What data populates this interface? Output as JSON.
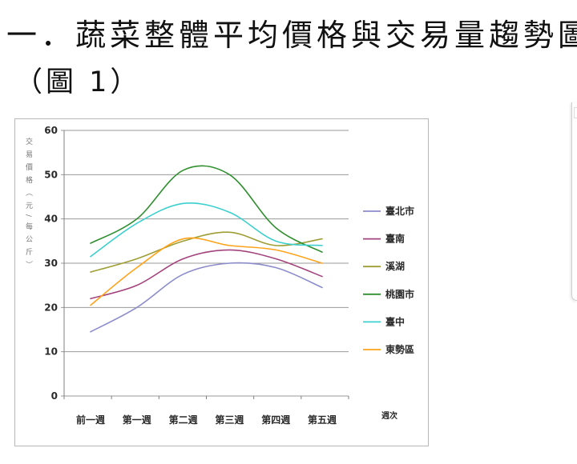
{
  "document": {
    "heading": "一．蔬菜整體平均價格與交易量趨勢圖",
    "figure_ref": "（圖 1）"
  },
  "chart_data": {
    "type": "line",
    "title": "",
    "xlabel": "週次",
    "ylabel": "交易價格（元/每公斤）",
    "categories": [
      "前一週",
      "第一週",
      "第二週",
      "第三週",
      "第四週",
      "第五週"
    ],
    "ylim": [
      0,
      60
    ],
    "yticks": [
      0,
      10,
      20,
      30,
      40,
      50,
      60
    ],
    "grid": true,
    "legend": "right",
    "series": [
      {
        "name": "臺北市",
        "color": "#8C8CCB",
        "values": [
          14.5,
          20,
          27.5,
          30,
          29,
          24.5
        ]
      },
      {
        "name": "臺南",
        "color": "#A3437D",
        "values": [
          22,
          25,
          31,
          33,
          31,
          27
        ]
      },
      {
        "name": "溪湖",
        "color": "#9E9E35",
        "values": [
          28,
          31,
          35,
          37,
          34,
          35.5
        ]
      },
      {
        "name": "桃園市",
        "color": "#2F8F2F",
        "values": [
          34.5,
          40,
          51,
          50,
          38,
          32.5
        ]
      },
      {
        "name": "臺中",
        "color": "#3CCFCF",
        "values": [
          31.5,
          39,
          43.5,
          41.5,
          35,
          34
        ]
      },
      {
        "name": "東勢區",
        "color": "#FFA31A",
        "values": [
          20.5,
          29,
          35.5,
          34,
          33,
          30
        ]
      }
    ]
  }
}
